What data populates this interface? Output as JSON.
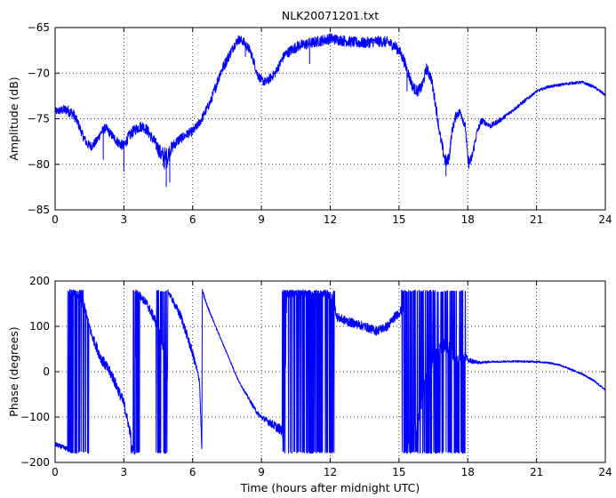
{
  "chart_data": [
    {
      "type": "line",
      "title": "NLK20071201.txt",
      "xlabel": "",
      "ylabel": "Amplitude (dB)",
      "xlim": [
        0,
        24
      ],
      "ylim": [
        -85,
        -65
      ],
      "xticks": [
        0,
        3,
        6,
        9,
        12,
        15,
        18,
        21,
        24
      ],
      "yticks": [
        -85,
        -80,
        -75,
        -70,
        -65
      ],
      "xtick_labels": [
        "0",
        "3",
        "6",
        "9",
        "12",
        "15",
        "18",
        "21",
        "24"
      ],
      "ytick_labels": [
        "−85",
        "−80",
        "−75",
        "−70",
        "−65"
      ],
      "grid": true,
      "color": "#0000ff",
      "series": [
        {
          "x": [
            0.0,
            0.5,
            0.8,
            1.0,
            1.2,
            1.4,
            1.6,
            1.8,
            2.0,
            2.2,
            2.4,
            2.6,
            2.8,
            3.0,
            3.2,
            3.4,
            3.6,
            3.8,
            4.0,
            4.2,
            4.4,
            4.6,
            4.7,
            4.8,
            4.9,
            5.0,
            5.2,
            5.4,
            5.6,
            5.8,
            6.0,
            6.2,
            6.4,
            6.6,
            6.8,
            7.0,
            7.2,
            7.5,
            7.8,
            8.0,
            8.2,
            8.5,
            8.7,
            8.8,
            9.0,
            9.2,
            9.4,
            9.6,
            9.8,
            10.0,
            10.3,
            10.6,
            11.0,
            11.5,
            12.0,
            12.5,
            13.0,
            13.5,
            14.0,
            14.5,
            14.8,
            15.0,
            15.2,
            15.4,
            15.6,
            15.8,
            16.0,
            16.2,
            16.4,
            16.6,
            16.8,
            17.0,
            17.1,
            17.2,
            17.3,
            17.5,
            17.7,
            17.9,
            18.0,
            18.1,
            18.2,
            18.4,
            18.6,
            18.8,
            19.0,
            19.5,
            20.0,
            20.5,
            21.0,
            21.5,
            22.0,
            22.5,
            23.0,
            23.5,
            24.0
          ],
          "values": [
            -74.2,
            -74.0,
            -74.5,
            -75.5,
            -76.8,
            -77.8,
            -78.0,
            -77.5,
            -76.5,
            -76.0,
            -76.6,
            -77.2,
            -77.7,
            -78.0,
            -77.0,
            -76.4,
            -76.0,
            -75.8,
            -76.2,
            -77.0,
            -77.8,
            -78.8,
            -79.2,
            -79.4,
            -79.2,
            -78.5,
            -77.8,
            -77.3,
            -77.0,
            -76.6,
            -76.4,
            -75.8,
            -75.0,
            -74.0,
            -73.0,
            -71.5,
            -70.0,
            -68.5,
            -67.0,
            -66.3,
            -66.5,
            -67.5,
            -69.0,
            -70.0,
            -70.8,
            -71.0,
            -70.5,
            -70.0,
            -69.0,
            -68.0,
            -67.5,
            -67.0,
            -66.8,
            -66.5,
            -66.2,
            -66.4,
            -66.6,
            -66.7,
            -66.5,
            -66.6,
            -67.0,
            -67.5,
            -68.5,
            -70.0,
            -71.5,
            -72.0,
            -71.5,
            -69.5,
            -70.5,
            -73.5,
            -77.0,
            -79.5,
            -79.8,
            -79.0,
            -76.5,
            -74.5,
            -74.3,
            -76.0,
            -79.5,
            -79.8,
            -79.0,
            -76.5,
            -75.2,
            -75.5,
            -75.8,
            -75.0,
            -74.0,
            -73.0,
            -72.0,
            -71.5,
            -71.3,
            -71.1,
            -71.0,
            -71.5,
            -72.4
          ],
          "noise": [
            0.4,
            0.6,
            0.6,
            0.5,
            0.5,
            0.5,
            0.5,
            0.5,
            0.5,
            0.5,
            0.5,
            0.5,
            0.6,
            0.6,
            0.6,
            0.6,
            0.6,
            0.6,
            0.6,
            0.6,
            0.7,
            0.9,
            1.2,
            1.3,
            1.1,
            0.8,
            0.6,
            0.6,
            0.5,
            0.5,
            0.5,
            0.5,
            0.5,
            0.5,
            0.5,
            0.6,
            0.6,
            0.6,
            0.5,
            0.5,
            0.5,
            0.5,
            0.5,
            0.5,
            0.5,
            0.5,
            0.5,
            0.5,
            0.5,
            0.5,
            0.6,
            0.6,
            0.6,
            0.6,
            0.6,
            0.6,
            0.6,
            0.6,
            0.6,
            0.6,
            0.6,
            0.6,
            0.6,
            0.6,
            0.6,
            0.6,
            0.6,
            0.6,
            0.6,
            0.6,
            0.6,
            0.7,
            0.7,
            0.6,
            0.5,
            0.5,
            0.5,
            0.5,
            0.6,
            0.6,
            0.5,
            0.4,
            0.4,
            0.3,
            0.3,
            0.25,
            0.2,
            0.2,
            0.15,
            0.15,
            0.15,
            0.15,
            0.15,
            0.15,
            0.15
          ],
          "spikes": [
            [
              2.1,
              -79.5
            ],
            [
              3.0,
              -80.8
            ],
            [
              4.85,
              -82.5
            ],
            [
              5.0,
              -82.0
            ],
            [
              8.3,
              -68.2
            ],
            [
              11.1,
              -69.0
            ],
            [
              15.35,
              -72.0
            ],
            [
              17.05,
              -81.3
            ],
            [
              18.05,
              -80.5
            ]
          ]
        }
      ]
    },
    {
      "type": "line",
      "title": "",
      "xlabel": "Time (hours after midnight UTC)",
      "ylabel": "Phase (degrees)",
      "xlim": [
        0,
        24
      ],
      "ylim": [
        -200,
        200
      ],
      "xticks": [
        0,
        3,
        6,
        9,
        12,
        15,
        18,
        21,
        24
      ],
      "yticks": [
        -200,
        -100,
        0,
        100,
        200
      ],
      "xtick_labels": [
        "0",
        "3",
        "6",
        "9",
        "12",
        "15",
        "18",
        "21",
        "24"
      ],
      "ytick_labels": [
        "−200",
        "−100",
        "0",
        "100",
        "200"
      ],
      "grid": true,
      "color": "#0000ff",
      "series": [
        {
          "x": [
            0.0,
            0.5,
            0.6,
            0.62,
            1.0,
            1.3,
            1.6,
            2.0,
            2.5,
            3.0,
            3.3,
            3.4,
            3.5,
            3.52,
            4.0,
            4.5,
            4.8,
            4.9,
            4.92,
            5.5,
            6.0,
            6.3,
            6.4,
            6.42,
            6.6,
            7.0,
            8.0,
            8.8,
            9.0,
            9.3,
            9.6,
            9.9,
            10.0,
            10.1,
            10.5,
            11.0,
            11.5,
            12.0,
            12.1,
            12.3,
            12.8,
            13.5,
            14.0,
            14.5,
            14.8,
            15.0,
            15.2,
            15.25,
            15.3,
            15.5,
            15.8,
            16.0,
            16.2,
            16.6,
            17.0,
            17.3,
            17.5,
            17.8,
            18.0,
            18.5,
            19.0,
            20.0,
            21.0,
            21.5,
            22.0,
            22.5,
            23.0,
            23.5,
            24.0
          ],
          "values": [
            -160,
            -170,
            -165,
            178,
            170,
            140,
            80,
            30,
            -10,
            -70,
            -140,
            -175,
            -180,
            178,
            150,
            100,
            30,
            -30,
            178,
            120,
            40,
            -20,
            -175,
            178,
            150,
            100,
            -20,
            -90,
            -100,
            -110,
            -120,
            -130,
            -150,
            170,
            175,
            172,
            170,
            168,
            165,
            120,
            110,
            100,
            90,
            100,
            120,
            130,
            140,
            -175,
            -170,
            -140,
            -120,
            -60,
            0,
            40,
            60,
            50,
            20,
            40,
            25,
            20,
            22,
            23,
            22,
            20,
            15,
            5,
            -5,
            -20,
            -40
          ],
          "noise": [
            5,
            5,
            5,
            5,
            8,
            10,
            10,
            12,
            12,
            12,
            10,
            5,
            5,
            5,
            10,
            12,
            12,
            12,
            5,
            10,
            10,
            8,
            5,
            5,
            3,
            2,
            2,
            5,
            5,
            8,
            10,
            12,
            12,
            8,
            8,
            8,
            8,
            8,
            8,
            10,
            10,
            10,
            10,
            10,
            10,
            10,
            10,
            5,
            5,
            10,
            12,
            15,
            15,
            15,
            15,
            15,
            12,
            12,
            8,
            3,
            2,
            2,
            2,
            2,
            2,
            2,
            2,
            2,
            2
          ],
          "wrap_bands": [
            [
              0.55,
              1.25
            ],
            [
              1.3,
              1.5
            ],
            [
              3.3,
              3.7
            ],
            [
              4.4,
              4.95
            ],
            [
              9.9,
              12.2
            ],
            [
              15.1,
              17.9
            ]
          ]
        }
      ]
    }
  ]
}
